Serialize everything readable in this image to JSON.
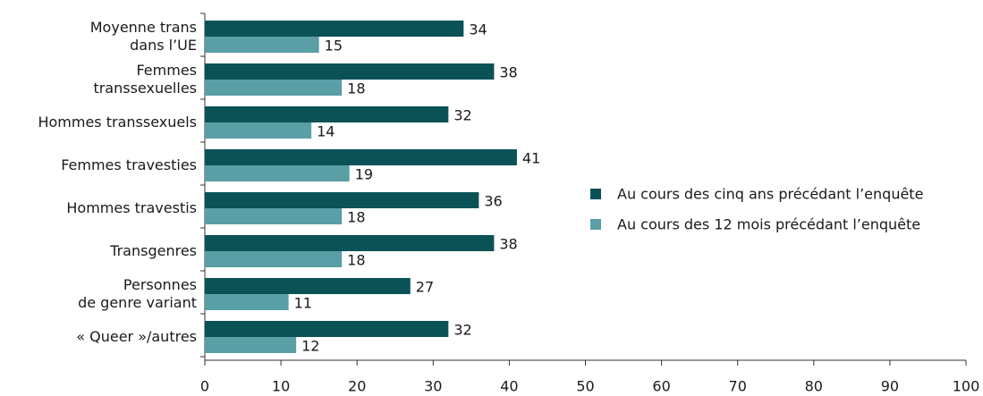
{
  "chart_data": {
    "type": "barh",
    "categories": [
      "Moyenne trans\ndans l’UE",
      "Femmes\ntranssexuelles",
      "Hommes transsexuels",
      "Femmes travesties",
      "Hommes travestis",
      "Transgenres",
      "Personnes\nde genre variant",
      "« Queer »/autres"
    ],
    "series": [
      {
        "name": "Au cours des cinq ans précédant l’enquête",
        "color": "#0b5257",
        "values": [
          34,
          38,
          32,
          41,
          36,
          38,
          27,
          32
        ]
      },
      {
        "name": "Au cours des 12 mois précédant l’enquête",
        "color": "#5a9ea6",
        "values": [
          15,
          18,
          14,
          19,
          18,
          18,
          11,
          12
        ]
      }
    ],
    "xlim": [
      0,
      100
    ],
    "xticks": [
      0,
      10,
      20,
      30,
      40,
      50,
      60,
      70,
      80,
      90,
      100
    ],
    "legend": "right"
  }
}
